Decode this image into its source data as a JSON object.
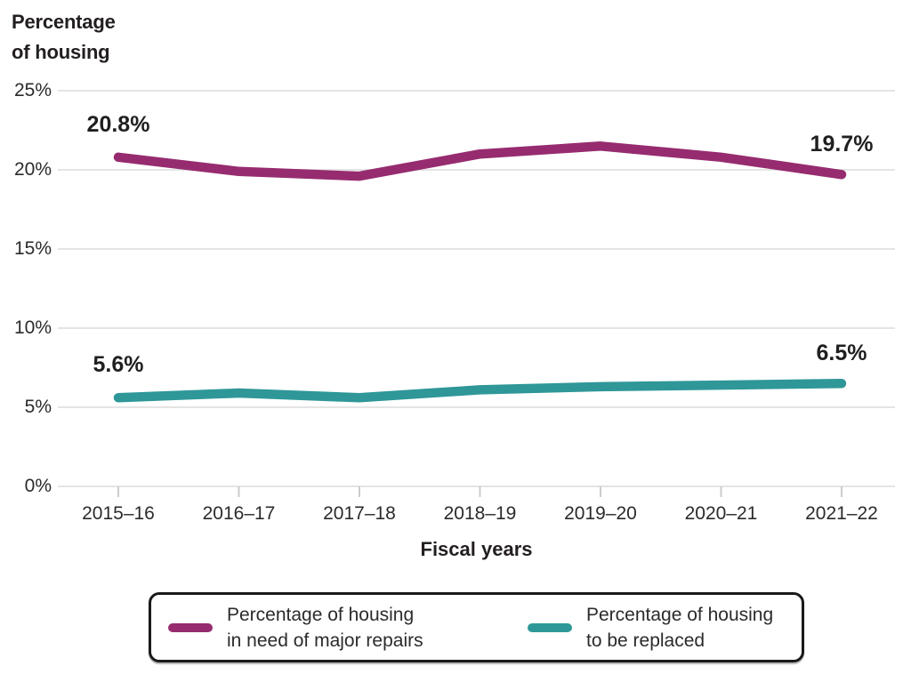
{
  "chart_data": {
    "type": "line",
    "title": "Percentage of housing",
    "title_lines": [
      "Percentage",
      "of housing"
    ],
    "xlabel": "Fiscal years",
    "ylabel": "Percentage of housing",
    "categories": [
      "2015–16",
      "2016–17",
      "2017–18",
      "2018–19",
      "2019–20",
      "2020–21",
      "2021–22"
    ],
    "ylim": [
      0,
      25
    ],
    "yticks": [
      {
        "label": "0%",
        "value": 0
      },
      {
        "label": "5%",
        "value": 5
      },
      {
        "label": "10%",
        "value": 10
      },
      {
        "label": "15%",
        "value": 15
      },
      {
        "label": "20%",
        "value": 20
      },
      {
        "label": "25%",
        "value": 25
      }
    ],
    "grid": true,
    "legend_position": "bottom",
    "series": [
      {
        "name": "Percentage of housing in need of major repairs",
        "legend_lines": [
          "Percentage of housing",
          "in need of major repairs"
        ],
        "color": "#962c6f",
        "values": [
          20.8,
          19.9,
          19.6,
          21.0,
          21.5,
          20.8,
          19.7
        ],
        "first_label": "20.8%",
        "last_label": "19.7%"
      },
      {
        "name": "Percentage of housing to be replaced",
        "legend_lines": [
          "Percentage of housing",
          "to be replaced"
        ],
        "color": "#2f9798",
        "values": [
          5.6,
          5.9,
          5.6,
          6.1,
          6.3,
          6.4,
          6.5
        ],
        "first_label": "5.6%",
        "last_label": "6.5%"
      }
    ],
    "colors": {
      "gridline": "#e4e4e4",
      "axis": "#cccccc",
      "label_text": "#1f1f1f"
    }
  }
}
